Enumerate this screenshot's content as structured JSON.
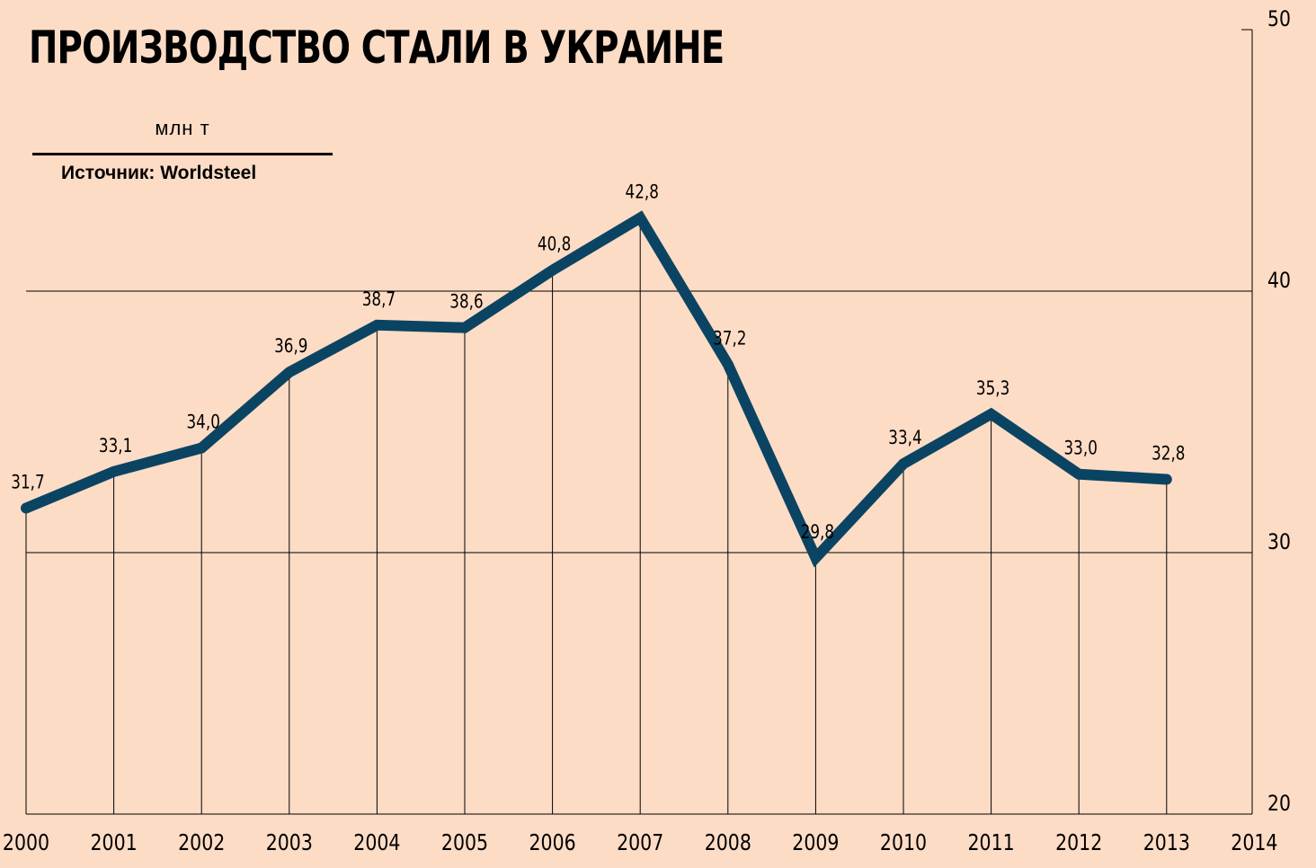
{
  "header": {
    "title": "ПРОИЗВОДСТВО СТАЛИ В УКРАИНЕ",
    "unit": "млн т",
    "source": "Источник: Worldsteel"
  },
  "colors": {
    "background": "#fddcc5",
    "line": "#0b4463",
    "grid": "#000000"
  },
  "chart_data": {
    "type": "line",
    "title": "ПРОИЗВОДСТВО СТАЛИ В УКРАИНЕ",
    "ylabel": "млн т",
    "xlabel": "",
    "x": [
      2000,
      2001,
      2002,
      2003,
      2004,
      2005,
      2006,
      2007,
      2008,
      2009,
      2010,
      2011,
      2012,
      2013
    ],
    "x_ticks": [
      "2000",
      "2001",
      "2002",
      "2003",
      "2004",
      "2005",
      "2006",
      "2007",
      "2008",
      "2009",
      "2010",
      "2011",
      "2012",
      "2013",
      "2014"
    ],
    "series": [
      {
        "values": [
          31.7,
          33.1,
          34.0,
          36.9,
          38.7,
          38.6,
          40.8,
          42.8,
          37.2,
          29.8,
          33.4,
          35.3,
          33.0,
          32.8
        ],
        "labels": [
          "31,7",
          "33,1",
          "34,0",
          "36,9",
          "38,7",
          "38,6",
          "40,8",
          "42,8",
          "37,2",
          "29,8",
          "33,4",
          "35,3",
          "33,0",
          "32,8"
        ]
      }
    ],
    "xlim": [
      2000,
      2014
    ],
    "ylim": [
      20,
      50
    ],
    "y_ticks": [
      20,
      30,
      40,
      50
    ],
    "y_tick_labels": [
      "20",
      "30",
      "40",
      "50"
    ],
    "y_axis_position": "right",
    "grid": true
  }
}
